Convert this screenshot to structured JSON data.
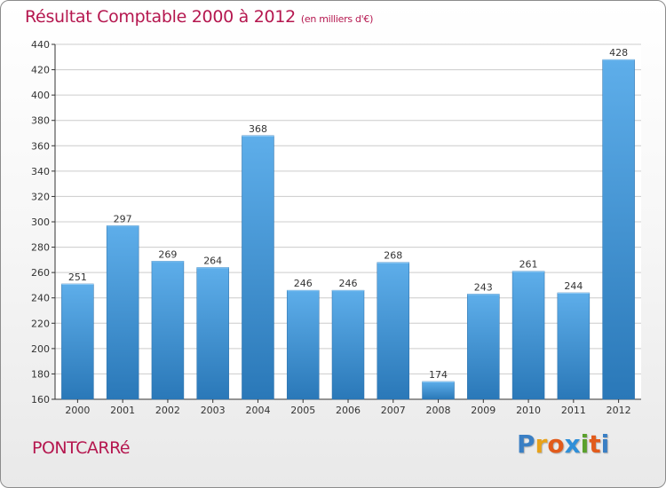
{
  "header": {
    "title": "Résultat Comptable 2000 à 2012",
    "subtitle": "(en milliers d'€)"
  },
  "footer": {
    "commune": "PONTCARRé",
    "logo_letters": [
      "P",
      "r",
      "o",
      "x",
      "i",
      "t",
      "i"
    ],
    "logo_colors": [
      "#3a7fc4",
      "#e8a21a",
      "#e25b1b",
      "#2f8fd8",
      "#5aa02c",
      "#e25b1b",
      "#3a7fc4"
    ]
  },
  "colors": {
    "accent": "#b5174f",
    "bar_light": "#5eaeea",
    "bar_dark": "#2a78b8",
    "grid": "#cccccc",
    "axis": "#333333"
  },
  "chart_data": {
    "type": "bar",
    "title": "Résultat Comptable 2000 à 2012",
    "xlabel": "",
    "ylabel": "",
    "categories": [
      "2000",
      "2001",
      "2002",
      "2003",
      "2004",
      "2005",
      "2006",
      "2007",
      "2008",
      "2009",
      "2010",
      "2011",
      "2012"
    ],
    "values": [
      251,
      297,
      269,
      264,
      368,
      246,
      246,
      268,
      174,
      243,
      261,
      244,
      428
    ],
    "ylim": [
      160,
      440
    ],
    "yticks": [
      160,
      180,
      200,
      220,
      240,
      260,
      280,
      300,
      320,
      340,
      360,
      380,
      400,
      420,
      440
    ],
    "grid": true,
    "data_labels": true
  }
}
